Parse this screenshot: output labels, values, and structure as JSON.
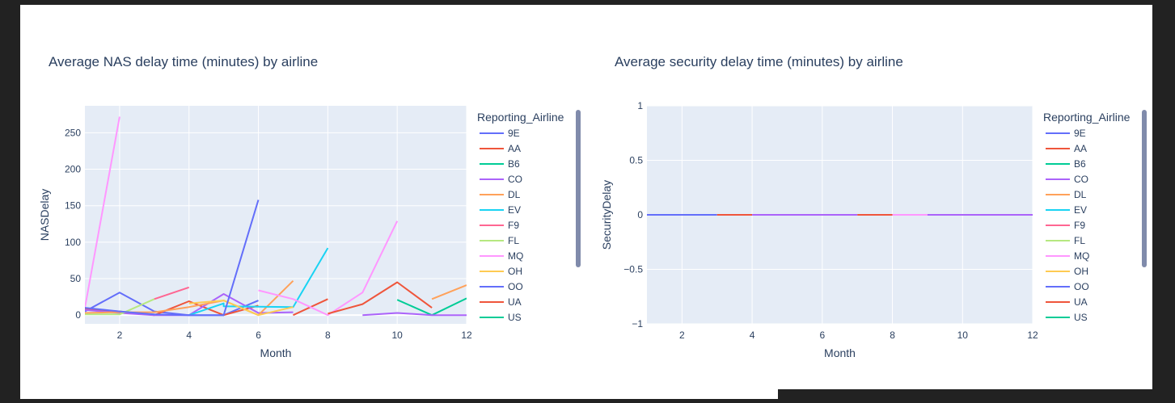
{
  "chart_data": [
    {
      "type": "line",
      "title": "Average NAS delay time (minutes) by airline",
      "xlabel": "Month",
      "ylabel": "NASDelay",
      "xlim": [
        1,
        12
      ],
      "ylim": [
        -12,
        287
      ],
      "x_ticks": [
        2,
        4,
        6,
        8,
        10,
        12
      ],
      "y_ticks": [
        0,
        50,
        100,
        150,
        200,
        250
      ],
      "grid": true,
      "legend_title": "Reporting_Airline",
      "legend_position": "right",
      "series": [
        {
          "name": "9E",
          "color": "#636efa",
          "points": [
            [
              1,
              5
            ],
            [
              2,
              31
            ],
            [
              3,
              5
            ],
            [
              4,
              0
            ],
            [
              5,
              0
            ],
            [
              6,
              20
            ]
          ]
        },
        {
          "name": "AA",
          "color": "#ef553b",
          "points": [
            [
              1,
              8
            ],
            [
              2,
              5
            ],
            [
              3,
              0
            ],
            [
              4,
              19
            ],
            [
              5,
              0
            ],
            [
              6,
              13
            ]
          ]
        },
        {
          "name": "B6",
          "color": "#00cc96",
          "points": [
            [
              11,
              0
            ],
            [
              12,
              23
            ]
          ]
        },
        {
          "name": "CO",
          "color": "#ab63fa",
          "points": [
            [
              1,
              7
            ],
            [
              2,
              3
            ],
            [
              3,
              0
            ],
            [
              4,
              0
            ],
            [
              5,
              29
            ],
            [
              6,
              3
            ],
            [
              7,
              4
            ]
          ]
        },
        {
          "name": "DL",
          "color": "#ffa15a",
          "points": [
            [
              1,
              3
            ],
            [
              2,
              4
            ],
            [
              3,
              4
            ],
            [
              4,
              11
            ],
            [
              5,
              20
            ],
            [
              6,
              0
            ],
            [
              7,
              47
            ]
          ]
        },
        {
          "name": "EV",
          "color": "#19d3f3",
          "points": [
            [
              4,
              0
            ],
            [
              5,
              16
            ],
            [
              5,
              12
            ],
            [
              7,
              11
            ],
            [
              8,
              92
            ]
          ]
        },
        {
          "name": "F9",
          "color": "#ff6692",
          "points": [
            [
              3,
              22
            ],
            [
              4,
              38
            ]
          ]
        },
        {
          "name": "FL",
          "color": "#b6e880",
          "points": [
            [
              1,
              1
            ],
            [
              2,
              1
            ],
            [
              3,
              22
            ]
          ]
        },
        {
          "name": "MQ",
          "color": "#ff97ff",
          "points": [
            [
              1,
              10
            ],
            [
              2,
              272
            ]
          ]
        },
        {
          "name": "OH",
          "color": "#fecb52",
          "points": [
            [
              4,
              16
            ],
            [
              5,
              20
            ],
            [
              6,
              0
            ],
            [
              7,
              11
            ]
          ]
        },
        {
          "name": "OO",
          "color": "#636efa",
          "points": [
            [
              1,
              10
            ],
            [
              2,
              5
            ],
            [
              3,
              1
            ],
            [
              4,
              0
            ],
            [
              5,
              0
            ],
            [
              6,
              158
            ]
          ]
        },
        {
          "name": "UA",
          "color": "#ef553b",
          "points": [
            [
              7,
              0
            ],
            [
              8,
              22
            ]
          ]
        },
        {
          "name": "US",
          "color": "#00cc96",
          "points": [
            [
              10,
              21
            ],
            [
              11,
              0
            ]
          ]
        },
        {
          "name": "",
          "color": "#ff97ff",
          "points": [
            [
              6,
              34
            ],
            [
              7,
              22
            ],
            [
              8,
              0
            ],
            [
              9,
              31
            ],
            [
              10,
              129
            ]
          ]
        },
        {
          "name": "",
          "color": "#ef553b",
          "points": [
            [
              8,
              2
            ],
            [
              9,
              15
            ],
            [
              10,
              45
            ],
            [
              11,
              10
            ]
          ]
        },
        {
          "name": "",
          "color": "#ab63fa",
          "points": [
            [
              9,
              0
            ],
            [
              10,
              3
            ],
            [
              11,
              0
            ],
            [
              12,
              0
            ]
          ]
        },
        {
          "name": "",
          "color": "#ffa15a",
          "points": [
            [
              11,
              22
            ],
            [
              12,
              41
            ]
          ]
        }
      ]
    },
    {
      "type": "line",
      "title": "Average security delay time (minutes) by airline",
      "xlabel": "Month",
      "ylabel": "SecurityDelay",
      "xlim": [
        1,
        12
      ],
      "ylim": [
        -1,
        1
      ],
      "x_ticks": [
        2,
        4,
        6,
        8,
        10,
        12
      ],
      "y_ticks": [
        -1,
        -0.5,
        0,
        0.5,
        1
      ],
      "y_tick_labels": [
        "−1",
        "−0.5",
        "0",
        "0.5",
        "1"
      ],
      "grid": true,
      "legend_title": "Reporting_Airline",
      "legend_position": "right",
      "series": [
        {
          "name": "9E",
          "color": "#636efa",
          "points": [
            [
              1,
              0
            ],
            [
              3,
              0
            ]
          ]
        },
        {
          "name": "AA",
          "color": "#ef553b",
          "points": [
            [
              3,
              0
            ],
            [
              4,
              0
            ]
          ]
        },
        {
          "name": "B6",
          "color": "#00cc96",
          "points": []
        },
        {
          "name": "CO",
          "color": "#ab63fa",
          "points": [
            [
              4,
              0
            ],
            [
              7,
              0
            ]
          ]
        },
        {
          "name": "DL",
          "color": "#ffa15a",
          "points": []
        },
        {
          "name": "EV",
          "color": "#19d3f3",
          "points": []
        },
        {
          "name": "F9",
          "color": "#ff6692",
          "points": []
        },
        {
          "name": "FL",
          "color": "#b6e880",
          "points": []
        },
        {
          "name": "MQ",
          "color": "#ff97ff",
          "points": [
            [
              8,
              0
            ],
            [
              9,
              0
            ]
          ]
        },
        {
          "name": "OH",
          "color": "#fecb52",
          "points": []
        },
        {
          "name": "OO",
          "color": "#636efa",
          "points": []
        },
        {
          "name": "UA",
          "color": "#ef553b",
          "points": [
            [
              7,
              0
            ],
            [
              8,
              0
            ]
          ]
        },
        {
          "name": "US",
          "color": "#00cc96",
          "points": []
        },
        {
          "name": "",
          "color": "#ab63fa",
          "points": [
            [
              9,
              0
            ],
            [
              12,
              0
            ]
          ]
        }
      ]
    }
  ]
}
